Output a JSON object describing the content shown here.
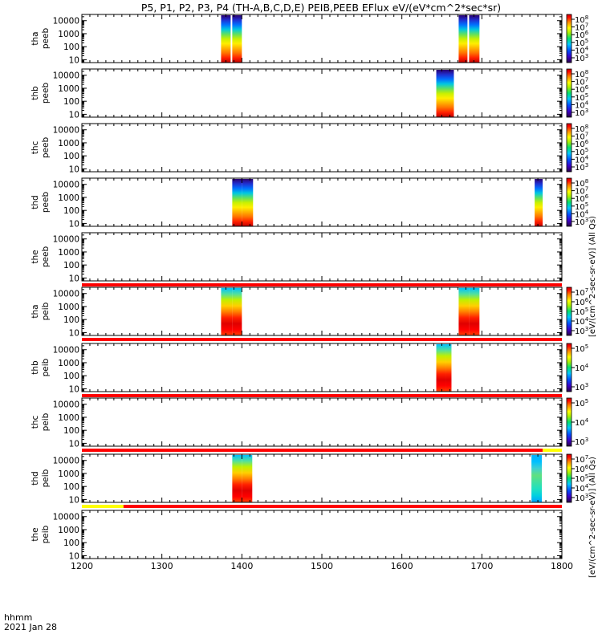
{
  "title": "P5, P1, P2, P3, P4 (TH-A,B,C,D,E) PEIB,PEEB EFlux eV/(eV*cm^2*sec*sr)",
  "colorbar_unit_top": "[eV/(cm^2-sec-sr-eV)] (All Qs)",
  "colorbar_unit_bottom": "[eV/(cm^2-sec-sr-eV)] (All Qs)",
  "xaxis": {
    "label_line1": "hhmm",
    "label_line2": "2021 Jan 28"
  },
  "chart_data": {
    "type": "heatmap",
    "x_range": [
      1200,
      1800
    ],
    "x_ticks": [
      "1200",
      "1300",
      "1400",
      "1500",
      "1600",
      "1700",
      "1800"
    ],
    "y_scale": "log",
    "y_range": [
      6,
      30000
    ],
    "y_ticks": [
      "10",
      "100",
      "1000",
      "10000"
    ],
    "panels": [
      {
        "label": [
          "tha",
          "peeb"
        ],
        "colorbar": [
          "10^8",
          "10^7",
          "10^6",
          "10^5",
          "10^4",
          "10^3"
        ],
        "mode": "electron",
        "blocks": [
          [
            1374,
            1386
          ],
          [
            1388,
            1400
          ],
          [
            1671,
            1682
          ],
          [
            1684,
            1697
          ]
        ]
      },
      {
        "label": [
          "thb",
          "peeb"
        ],
        "colorbar": [
          "10^8",
          "10^7",
          "10^6",
          "10^5",
          "10^4",
          "10^3"
        ],
        "mode": "electron_b",
        "blocks": [
          [
            1643,
            1665
          ]
        ]
      },
      {
        "label": [
          "thc",
          "peeb"
        ],
        "colorbar": [
          "10^8",
          "10^7",
          "10^6",
          "10^5",
          "10^4",
          "10^3"
        ],
        "mode": "none",
        "blocks": []
      },
      {
        "label": [
          "thd",
          "peeb"
        ],
        "colorbar": [
          "10^8",
          "10^7",
          "10^6",
          "10^5",
          "10^4",
          "10^3"
        ],
        "mode": "electron_d",
        "blocks": [
          [
            1388,
            1400
          ],
          [
            1400,
            1414
          ],
          [
            1766,
            1776
          ]
        ]
      },
      {
        "label": [
          "the",
          "peeb"
        ],
        "colorbar": [],
        "mode": "none",
        "blocks": [],
        "bar": "red"
      },
      {
        "label": [
          "tha",
          "peib"
        ],
        "colorbar": [
          "10^7",
          "10^6",
          "10^5",
          "10^4",
          "10^3"
        ],
        "mode": "ion",
        "blocks": [
          [
            1374,
            1388
          ],
          [
            1388,
            1400
          ],
          [
            1671,
            1684
          ],
          [
            1684,
            1697
          ]
        ],
        "bar": "red"
      },
      {
        "label": [
          "thb",
          "peib"
        ],
        "colorbar": [
          "10^5",
          "10^4",
          "10^3"
        ],
        "mode": "ion_b",
        "blocks": [
          [
            1643,
            1655
          ],
          [
            1655,
            1662
          ]
        ],
        "bar": "red"
      },
      {
        "label": [
          "thc",
          "peib"
        ],
        "colorbar": [
          "10^5",
          "10^4",
          "10^3"
        ],
        "mode": "none",
        "blocks": [],
        "bar": "red_yellow_end"
      },
      {
        "label": [
          "thd",
          "peib"
        ],
        "colorbar": [
          "10^7",
          "10^6",
          "10^5",
          "10^4",
          "10^3"
        ],
        "mode": "ion_d",
        "blocks": [
          [
            1388,
            1400
          ],
          [
            1400,
            1413
          ],
          [
            1762,
            1775
          ]
        ],
        "bar": "yellow_start_red"
      },
      {
        "label": [
          "the",
          "peib"
        ],
        "colorbar": [],
        "mode": "none",
        "blocks": []
      }
    ]
  }
}
